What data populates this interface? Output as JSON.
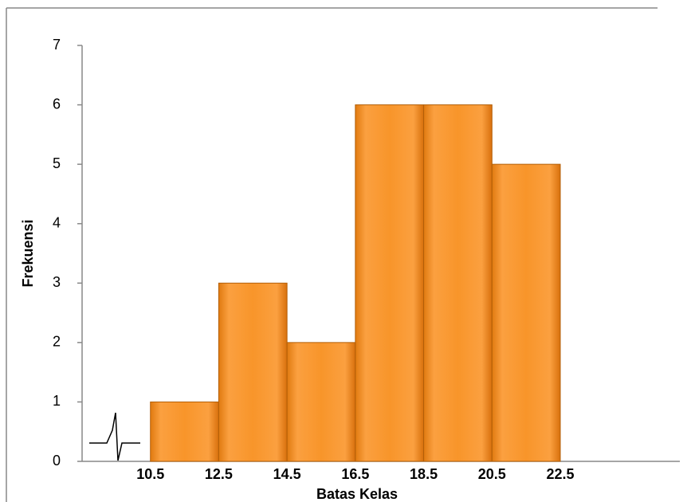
{
  "chart_data": {
    "type": "histogram",
    "x_label": "Batas Kelas",
    "y_label": "Frekuensi",
    "bins": [
      10.5,
      12.5,
      14.5,
      16.5,
      18.5,
      20.5,
      22.5
    ],
    "values": [
      1,
      3,
      2,
      6,
      6,
      5
    ],
    "color": "#f7941d",
    "xlim": [
      8.5,
      26
    ],
    "ylim": [
      0,
      7
    ],
    "yticks": [
      0,
      1,
      2,
      3,
      4,
      5,
      6,
      7
    ],
    "grid": false
  }
}
